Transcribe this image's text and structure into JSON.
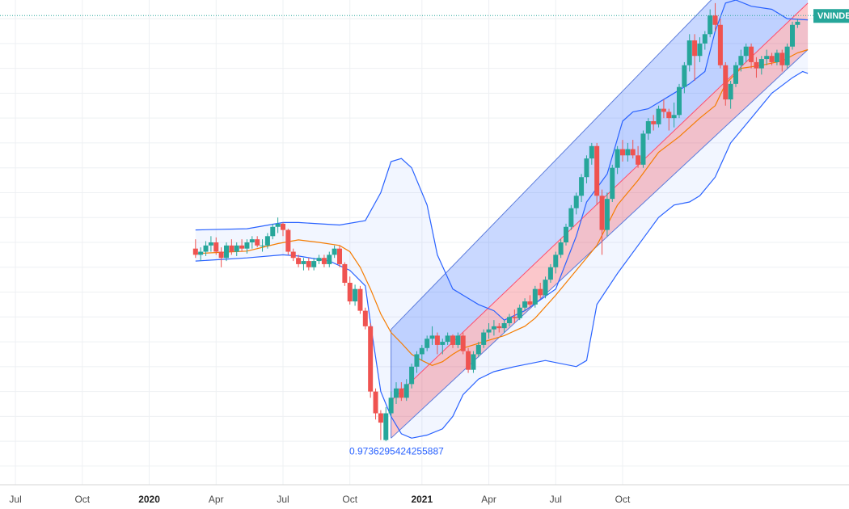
{
  "chart_data": {
    "type": "candlestick",
    "symbol_badge": "VNINDEX",
    "x_ticks": [
      {
        "label": "Jul",
        "week": -35,
        "major": false
      },
      {
        "label": "Oct",
        "week": -22,
        "major": false
      },
      {
        "label": "2020",
        "week": -9,
        "major": true
      },
      {
        "label": "Apr",
        "week": 4,
        "major": false
      },
      {
        "label": "Jul",
        "week": 17,
        "major": false
      },
      {
        "label": "Oct",
        "week": 30,
        "major": false
      },
      {
        "label": "2021",
        "week": 44,
        "major": true
      },
      {
        "label": "Apr",
        "week": 57,
        "major": false
      },
      {
        "label": "Jul",
        "week": 70,
        "major": false
      },
      {
        "label": "Oct",
        "week": 83,
        "major": false
      }
    ],
    "candles": [
      {
        "o": 970,
        "h": 985,
        "l": 955,
        "c": 960
      },
      {
        "o": 960,
        "h": 972,
        "l": 950,
        "c": 965
      },
      {
        "o": 965,
        "h": 982,
        "l": 958,
        "c": 975
      },
      {
        "o": 975,
        "h": 990,
        "l": 965,
        "c": 980
      },
      {
        "o": 980,
        "h": 988,
        "l": 960,
        "c": 965
      },
      {
        "o": 965,
        "h": 972,
        "l": 940,
        "c": 955
      },
      {
        "o": 955,
        "h": 980,
        "l": 950,
        "c": 975
      },
      {
        "o": 975,
        "h": 985,
        "l": 960,
        "c": 965
      },
      {
        "o": 965,
        "h": 980,
        "l": 958,
        "c": 975
      },
      {
        "o": 975,
        "h": 985,
        "l": 965,
        "c": 970
      },
      {
        "o": 970,
        "h": 985,
        "l": 962,
        "c": 980
      },
      {
        "o": 980,
        "h": 990,
        "l": 970,
        "c": 985
      },
      {
        "o": 985,
        "h": 990,
        "l": 972,
        "c": 975
      },
      {
        "o": 975,
        "h": 985,
        "l": 965,
        "c": 975
      },
      {
        "o": 975,
        "h": 995,
        "l": 970,
        "c": 990
      },
      {
        "o": 990,
        "h": 1010,
        "l": 985,
        "c": 1005
      },
      {
        "o": 1005,
        "h": 1020,
        "l": 995,
        "c": 1010
      },
      {
        "o": 1010,
        "h": 1012,
        "l": 990,
        "c": 1000
      },
      {
        "o": 1000,
        "h": 1002,
        "l": 960,
        "c": 965
      },
      {
        "o": 965,
        "h": 970,
        "l": 950,
        "c": 955
      },
      {
        "o": 955,
        "h": 960,
        "l": 940,
        "c": 945
      },
      {
        "o": 945,
        "h": 955,
        "l": 935,
        "c": 950
      },
      {
        "o": 950,
        "h": 955,
        "l": 935,
        "c": 940
      },
      {
        "o": 940,
        "h": 955,
        "l": 935,
        "c": 950
      },
      {
        "o": 950,
        "h": 960,
        "l": 945,
        "c": 955
      },
      {
        "o": 955,
        "h": 960,
        "l": 940,
        "c": 945
      },
      {
        "o": 945,
        "h": 965,
        "l": 940,
        "c": 960
      },
      {
        "o": 960,
        "h": 975,
        "l": 955,
        "c": 970
      },
      {
        "o": 970,
        "h": 975,
        "l": 940,
        "c": 945
      },
      {
        "o": 945,
        "h": 948,
        "l": 910,
        "c": 915
      },
      {
        "o": 915,
        "h": 925,
        "l": 880,
        "c": 885
      },
      {
        "o": 885,
        "h": 912,
        "l": 878,
        "c": 905
      },
      {
        "o": 905,
        "h": 910,
        "l": 865,
        "c": 870
      },
      {
        "o": 870,
        "h": 875,
        "l": 840,
        "c": 845
      },
      {
        "o": 845,
        "h": 850,
        "l": 730,
        "c": 740
      },
      {
        "o": 740,
        "h": 745,
        "l": 695,
        "c": 705
      },
      {
        "o": 705,
        "h": 710,
        "l": 662,
        "c": 690
      },
      {
        "o": 662,
        "h": 715,
        "l": 660,
        "c": 705
      },
      {
        "o": 705,
        "h": 740,
        "l": 700,
        "c": 730
      },
      {
        "o": 730,
        "h": 755,
        "l": 720,
        "c": 745
      },
      {
        "o": 745,
        "h": 755,
        "l": 725,
        "c": 730
      },
      {
        "o": 730,
        "h": 760,
        "l": 725,
        "c": 752
      },
      {
        "o": 752,
        "h": 785,
        "l": 745,
        "c": 780
      },
      {
        "o": 780,
        "h": 805,
        "l": 770,
        "c": 800
      },
      {
        "o": 800,
        "h": 815,
        "l": 790,
        "c": 810
      },
      {
        "o": 810,
        "h": 830,
        "l": 805,
        "c": 825
      },
      {
        "o": 825,
        "h": 845,
        "l": 815,
        "c": 830
      },
      {
        "o": 830,
        "h": 835,
        "l": 800,
        "c": 815
      },
      {
        "o": 815,
        "h": 825,
        "l": 800,
        "c": 820
      },
      {
        "o": 820,
        "h": 835,
        "l": 815,
        "c": 830
      },
      {
        "o": 830,
        "h": 832,
        "l": 810,
        "c": 815
      },
      {
        "o": 815,
        "h": 835,
        "l": 810,
        "c": 830
      },
      {
        "o": 830,
        "h": 835,
        "l": 800,
        "c": 805
      },
      {
        "o": 805,
        "h": 810,
        "l": 770,
        "c": 775
      },
      {
        "o": 775,
        "h": 805,
        "l": 770,
        "c": 800
      },
      {
        "o": 800,
        "h": 820,
        "l": 795,
        "c": 815
      },
      {
        "o": 815,
        "h": 840,
        "l": 810,
        "c": 835
      },
      {
        "o": 835,
        "h": 850,
        "l": 825,
        "c": 840
      },
      {
        "o": 840,
        "h": 855,
        "l": 830,
        "c": 845
      },
      {
        "o": 845,
        "h": 850,
        "l": 835,
        "c": 842
      },
      {
        "o": 842,
        "h": 855,
        "l": 835,
        "c": 850
      },
      {
        "o": 850,
        "h": 865,
        "l": 845,
        "c": 860
      },
      {
        "o": 860,
        "h": 872,
        "l": 850,
        "c": 858
      },
      {
        "o": 858,
        "h": 880,
        "l": 855,
        "c": 875
      },
      {
        "o": 875,
        "h": 890,
        "l": 870,
        "c": 885
      },
      {
        "o": 885,
        "h": 895,
        "l": 875,
        "c": 880
      },
      {
        "o": 880,
        "h": 910,
        "l": 875,
        "c": 905
      },
      {
        "o": 905,
        "h": 915,
        "l": 890,
        "c": 895
      },
      {
        "o": 895,
        "h": 925,
        "l": 890,
        "c": 920
      },
      {
        "o": 920,
        "h": 945,
        "l": 915,
        "c": 940
      },
      {
        "o": 940,
        "h": 965,
        "l": 930,
        "c": 960
      },
      {
        "o": 960,
        "h": 985,
        "l": 955,
        "c": 980
      },
      {
        "o": 980,
        "h": 1010,
        "l": 975,
        "c": 1005
      },
      {
        "o": 1005,
        "h": 1040,
        "l": 1000,
        "c": 1035
      },
      {
        "o": 1035,
        "h": 1060,
        "l": 1025,
        "c": 1055
      },
      {
        "o": 1055,
        "h": 1090,
        "l": 1045,
        "c": 1085
      },
      {
        "o": 1085,
        "h": 1120,
        "l": 1075,
        "c": 1115
      },
      {
        "o": 1115,
        "h": 1140,
        "l": 1105,
        "c": 1135
      },
      {
        "o": 1135,
        "h": 1140,
        "l": 1040,
        "c": 1055
      },
      {
        "o": 1055,
        "h": 1065,
        "l": 960,
        "c": 1000
      },
      {
        "o": 1000,
        "h": 1060,
        "l": 990,
        "c": 1050
      },
      {
        "o": 1050,
        "h": 1105,
        "l": 1045,
        "c": 1100
      },
      {
        "o": 1100,
        "h": 1135,
        "l": 1090,
        "c": 1130
      },
      {
        "o": 1130,
        "h": 1145,
        "l": 1110,
        "c": 1120
      },
      {
        "o": 1120,
        "h": 1140,
        "l": 1110,
        "c": 1130
      },
      {
        "o": 1130,
        "h": 1145,
        "l": 1115,
        "c": 1120
      },
      {
        "o": 1120,
        "h": 1135,
        "l": 1100,
        "c": 1105
      },
      {
        "o": 1105,
        "h": 1160,
        "l": 1100,
        "c": 1155
      },
      {
        "o": 1155,
        "h": 1180,
        "l": 1145,
        "c": 1175
      },
      {
        "o": 1175,
        "h": 1185,
        "l": 1160,
        "c": 1170
      },
      {
        "o": 1170,
        "h": 1200,
        "l": 1165,
        "c": 1195
      },
      {
        "o": 1195,
        "h": 1210,
        "l": 1180,
        "c": 1190
      },
      {
        "o": 1190,
        "h": 1195,
        "l": 1160,
        "c": 1180
      },
      {
        "o": 1180,
        "h": 1205,
        "l": 1165,
        "c": 1185
      },
      {
        "o": 1185,
        "h": 1235,
        "l": 1180,
        "c": 1230
      },
      {
        "o": 1230,
        "h": 1270,
        "l": 1220,
        "c": 1265
      },
      {
        "o": 1265,
        "h": 1315,
        "l": 1255,
        "c": 1305
      },
      {
        "o": 1305,
        "h": 1315,
        "l": 1240,
        "c": 1280
      },
      {
        "o": 1280,
        "h": 1310,
        "l": 1270,
        "c": 1300
      },
      {
        "o": 1300,
        "h": 1320,
        "l": 1290,
        "c": 1315
      },
      {
        "o": 1315,
        "h": 1355,
        "l": 1310,
        "c": 1345
      },
      {
        "o": 1345,
        "h": 1365,
        "l": 1320,
        "c": 1330
      },
      {
        "o": 1330,
        "h": 1340,
        "l": 1260,
        "c": 1265
      },
      {
        "o": 1265,
        "h": 1270,
        "l": 1200,
        "c": 1210
      },
      {
        "o": 1210,
        "h": 1240,
        "l": 1195,
        "c": 1235
      },
      {
        "o": 1235,
        "h": 1270,
        "l": 1230,
        "c": 1265
      },
      {
        "o": 1265,
        "h": 1290,
        "l": 1255,
        "c": 1280
      },
      {
        "o": 1280,
        "h": 1300,
        "l": 1270,
        "c": 1295
      },
      {
        "o": 1295,
        "h": 1300,
        "l": 1260,
        "c": 1270
      },
      {
        "o": 1270,
        "h": 1278,
        "l": 1245,
        "c": 1260
      },
      {
        "o": 1260,
        "h": 1280,
        "l": 1250,
        "c": 1275
      },
      {
        "o": 1275,
        "h": 1290,
        "l": 1265,
        "c": 1280
      },
      {
        "o": 1280,
        "h": 1285,
        "l": 1265,
        "c": 1270
      },
      {
        "o": 1270,
        "h": 1290,
        "l": 1265,
        "c": 1285
      },
      {
        "o": 1285,
        "h": 1290,
        "l": 1255,
        "c": 1265
      },
      {
        "o": 1265,
        "h": 1300,
        "l": 1260,
        "c": 1295
      },
      {
        "o": 1295,
        "h": 1335,
        "l": 1290,
        "c": 1330
      },
      {
        "o": 1330,
        "h": 1340,
        "l": 1325,
        "c": 1335
      }
    ],
    "bollinger_upper": [
      [
        0,
        1000
      ],
      [
        10,
        1002
      ],
      [
        17,
        1012
      ],
      [
        20,
        1012
      ],
      [
        28,
        1008
      ],
      [
        33,
        1015
      ],
      [
        36,
        1060
      ],
      [
        38,
        1110
      ],
      [
        40,
        1115
      ],
      [
        42,
        1100
      ],
      [
        45,
        1040
      ],
      [
        47,
        960
      ],
      [
        50,
        905
      ],
      [
        52,
        895
      ],
      [
        55,
        880
      ],
      [
        58,
        870
      ],
      [
        60,
        855
      ],
      [
        64,
        870
      ],
      [
        70,
        905
      ],
      [
        74,
        990
      ],
      [
        76,
        1045
      ],
      [
        80,
        1090
      ],
      [
        83,
        1175
      ],
      [
        85,
        1190
      ],
      [
        88,
        1195
      ],
      [
        92,
        1215
      ],
      [
        96,
        1235
      ],
      [
        99,
        1255
      ],
      [
        101,
        1320
      ],
      [
        103,
        1365
      ],
      [
        105,
        1370
      ],
      [
        108,
        1360
      ],
      [
        112,
        1355
      ],
      [
        115,
        1340
      ],
      [
        119,
        1338
      ]
    ],
    "bollinger_lower": [
      [
        0,
        950
      ],
      [
        10,
        955
      ],
      [
        17,
        960
      ],
      [
        20,
        958
      ],
      [
        26,
        950
      ],
      [
        30,
        935
      ],
      [
        33,
        910
      ],
      [
        34,
        850
      ],
      [
        36,
        740
      ],
      [
        38,
        700
      ],
      [
        40,
        672
      ],
      [
        42,
        665
      ],
      [
        45,
        670
      ],
      [
        48,
        680
      ],
      [
        50,
        700
      ],
      [
        52,
        735
      ],
      [
        55,
        760
      ],
      [
        58,
        772
      ],
      [
        62,
        780
      ],
      [
        68,
        790
      ],
      [
        74,
        780
      ],
      [
        76,
        790
      ],
      [
        78,
        880
      ],
      [
        82,
        930
      ],
      [
        86,
        975
      ],
      [
        90,
        1020
      ],
      [
        93,
        1040
      ],
      [
        96,
        1045
      ],
      [
        98,
        1055
      ],
      [
        101,
        1085
      ],
      [
        104,
        1140
      ],
      [
        108,
        1180
      ],
      [
        112,
        1220
      ],
      [
        116,
        1245
      ],
      [
        118,
        1255
      ],
      [
        119,
        1252
      ]
    ],
    "sma": [
      [
        0,
        962
      ],
      [
        10,
        966
      ],
      [
        16,
        978
      ],
      [
        20,
        984
      ],
      [
        24,
        980
      ],
      [
        28,
        975
      ],
      [
        30,
        965
      ],
      [
        32,
        940
      ],
      [
        34,
        905
      ],
      [
        36,
        865
      ],
      [
        38,
        835
      ],
      [
        40,
        818
      ],
      [
        42,
        800
      ],
      [
        44,
        790
      ],
      [
        46,
        782
      ],
      [
        48,
        788
      ],
      [
        50,
        800
      ],
      [
        52,
        810
      ],
      [
        56,
        820
      ],
      [
        60,
        830
      ],
      [
        64,
        845
      ],
      [
        66,
        858
      ],
      [
        70,
        895
      ],
      [
        74,
        935
      ],
      [
        78,
        975
      ],
      [
        82,
        1040
      ],
      [
        86,
        1080
      ],
      [
        90,
        1125
      ],
      [
        94,
        1150
      ],
      [
        98,
        1180
      ],
      [
        101,
        1200
      ],
      [
        103,
        1235
      ],
      [
        106,
        1260
      ],
      [
        110,
        1265
      ],
      [
        114,
        1272
      ],
      [
        117,
        1285
      ],
      [
        119,
        1290
      ]
    ],
    "reference_price": 1345,
    "channel": {
      "start_week": 38,
      "end_week": 119,
      "upper_start": 840,
      "upper_end": 1530,
      "mid_start": 725,
      "mid_end": 1365,
      "lower_start": 665,
      "lower_end": 1290
    },
    "annotation": "0.9736295424255887",
    "annotation_week": 39,
    "colors": {
      "up": "#26a69a",
      "down": "#ef5350",
      "band": "#2962ff",
      "sma": "#f57c00",
      "channel_upper_fill": "#2962ff",
      "channel_lower_fill": "#f23645",
      "channel_line": "#5b7bdc",
      "annotation": "#2962ff",
      "badge": "#26a69a",
      "grid": "#eef0f3",
      "ref_line": "#26a69a"
    },
    "price_range": [
      590,
      1370
    ],
    "week_range": [
      -38,
      127
    ],
    "grid_rows": [
      1340,
      1300,
      1260,
      1220,
      1180,
      1140,
      1100,
      1060,
      1020,
      980,
      940,
      900,
      860,
      820,
      780,
      740,
      700,
      660,
      620
    ]
  }
}
